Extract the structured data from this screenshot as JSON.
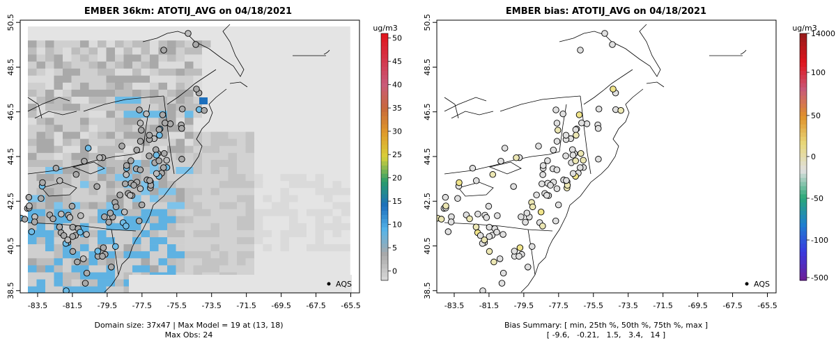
{
  "chart_data": [
    {
      "type": "map",
      "title": "EMBER 36km: ATOTIJ_AVG on 04/18/2021",
      "x_ticks": [
        "-83.5",
        "-81.5",
        "-79.5",
        "-77.5",
        "-75.5",
        "-73.5",
        "-71.5",
        "-69.5",
        "-67.5",
        "-65.5"
      ],
      "y_ticks": [
        "38.5",
        "40.5",
        "42.5",
        "44.5",
        "46.5",
        "48.5",
        "50.5"
      ],
      "xlim": [
        -84.5,
        -65.0
      ],
      "ylim": [
        38.4,
        50.6
      ],
      "legend": {
        "marker": "AQS"
      },
      "colorbar": {
        "unit": "ug/m3",
        "ticks": [
          "0",
          "5",
          "10",
          "15",
          "20",
          "25",
          "30",
          "35",
          "40",
          "45",
          "50"
        ],
        "range": [
          -2,
          51
        ],
        "colors": [
          "#d6d6d6",
          "#a9a9a9",
          "#56b4e9",
          "#1c6fbd",
          "#2a9d6a",
          "#d8d03a",
          "#e09a2a",
          "#c8693a",
          "#c95a7a",
          "#d4364a",
          "#e0161e"
        ]
      },
      "footer": [
        "Domain size: 37x47 | Max Model = 19 at (13, 18)",
        "Max Obs: 24"
      ]
    },
    {
      "type": "map",
      "title": "EMBER bias: ATOTIJ_AVG on 04/18/2021",
      "x_ticks": [
        "-83.5",
        "-81.5",
        "-79.5",
        "-77.5",
        "-75.5",
        "-73.5",
        "-71.5",
        "-69.5",
        "-67.5",
        "-65.5"
      ],
      "y_ticks": [
        "38.5",
        "40.5",
        "42.5",
        "44.5",
        "46.5",
        "48.5",
        "50.5"
      ],
      "xlim": [
        -84.5,
        -65.0
      ],
      "ylim": [
        38.4,
        50.6
      ],
      "legend": {
        "marker": "AQS"
      },
      "colorbar": {
        "unit": "ug/m3",
        "ticks": [
          "-500",
          "-100",
          "-50",
          "0",
          "50",
          "100",
          "14000"
        ],
        "colors": [
          "#6a1f9a",
          "#3a3ae0",
          "#1f7fd0",
          "#2aa878",
          "#e0e0e0",
          "#e8d87a",
          "#e0922a",
          "#c85a7a",
          "#e0161e",
          "#9a1a1a"
        ]
      },
      "bias_summary": {
        "label": "Bias Summary: [ min, 25th %, 50th %, 75th %, max ]",
        "values": "[ -9.6,   -0.21,   1.5,   3.4,   14 ]"
      }
    }
  ]
}
